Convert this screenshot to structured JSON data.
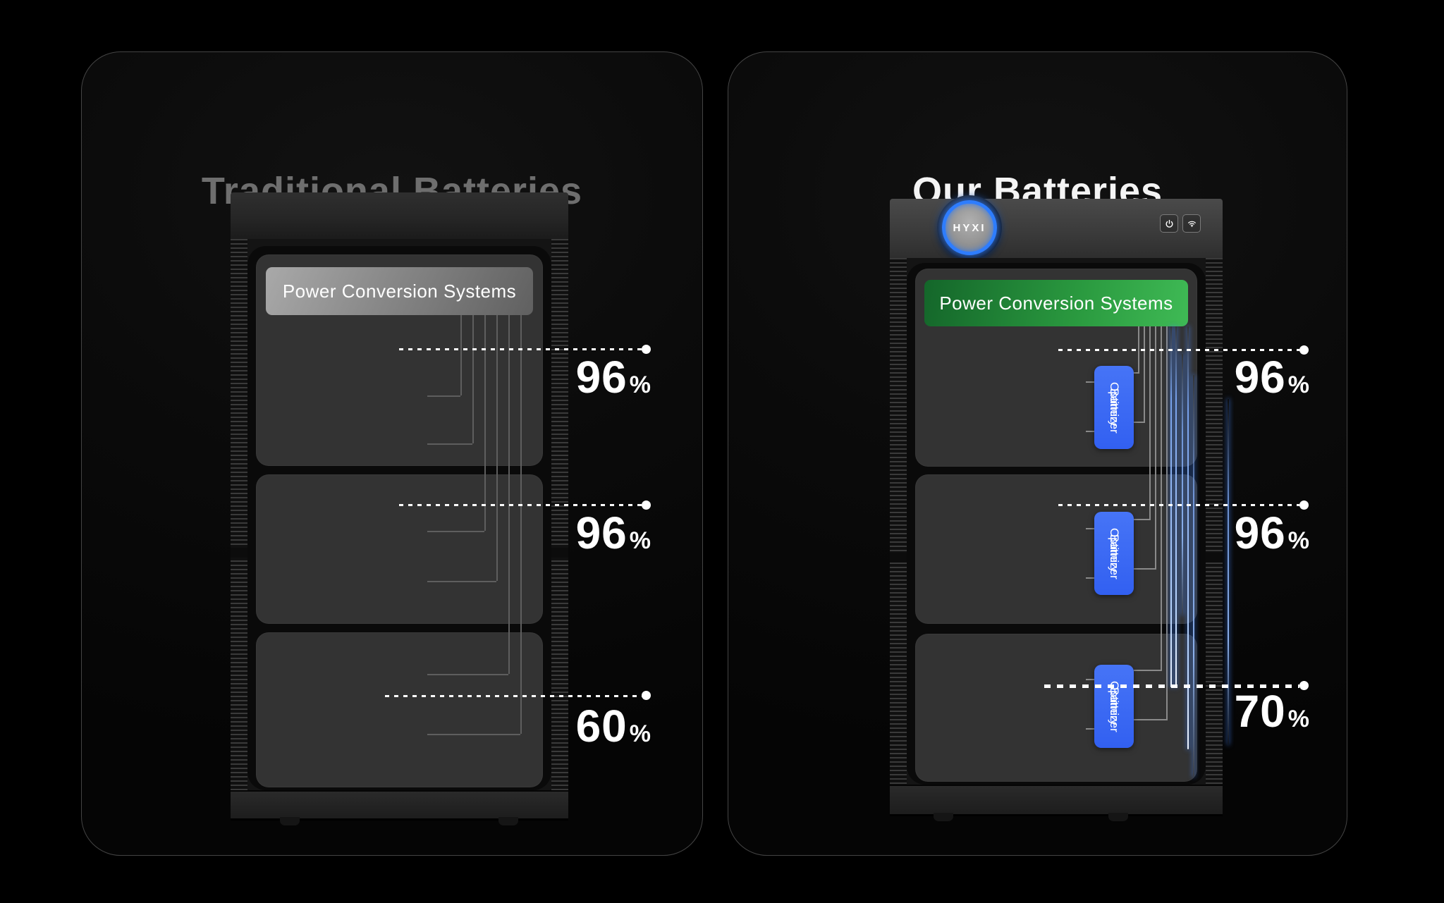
{
  "panels": {
    "traditional": {
      "title": "Traditional Batteries",
      "pcs_label": "Power Conversion Systems",
      "cells_per_shelf": 6,
      "levels": [
        {
          "value": "96",
          "suffix": "%"
        },
        {
          "value": "96",
          "suffix": "%"
        },
        {
          "value": "60",
          "suffix": "%"
        }
      ]
    },
    "ours": {
      "title": "Our Batteries",
      "brand": "HYXI",
      "pcs_label": "Power Conversion Systems",
      "cells_per_shelf": 6,
      "optimizer": {
        "line1": "Battery",
        "line2": "Optimizer"
      },
      "header_icons": [
        "power-icon",
        "wifi-icon"
      ],
      "levels": [
        {
          "value": "96",
          "suffix": "%"
        },
        {
          "value": "96",
          "suffix": "%"
        },
        {
          "value": "70",
          "suffix": "%"
        }
      ]
    }
  },
  "colors": {
    "background": "#000000",
    "card_border": "#444444",
    "title_muted": "#6e6e6e",
    "title_bright": "#f4f4f4",
    "pcs_green": "#2b9b40",
    "optimizer_blue": "#3c6bf3",
    "cell_blue": "#92bcf4",
    "logo_ring_blue": "#2e7dff",
    "annotation": "#ffffff"
  }
}
